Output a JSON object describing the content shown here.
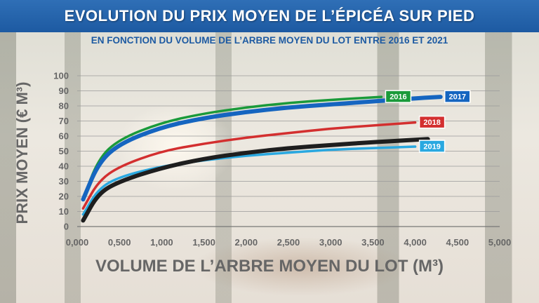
{
  "header": {
    "title": "EVOLUTION DU PRIX MOYEN DE L’ÉPICÉA SUR PIED",
    "subtitle": "EN FONCTION DU VOLUME DE L’ARBRE MOYEN DU LOT ENTRE 2016 ET 2021"
  },
  "chart_data": {
    "type": "line",
    "title": "EVOLUTION DU PRIX MOYEN DE L’ÉPICÉA SUR PIED",
    "subtitle": "EN FONCTION DU VOLUME DE L’ARBRE MOYEN DU LOT ENTRE 2016 ET 2021",
    "xlabel": "VOLUME DE L’ARBRE MOYEN DU LOT (M³)",
    "ylabel": "PRIX MOYEN (€ M³)",
    "xlim": [
      0,
      5
    ],
    "ylim": [
      0,
      100
    ],
    "x_ticks": [
      "0,000",
      "0,500",
      "1,000",
      "1,500",
      "2,000",
      "2,500",
      "3,000",
      "3,500",
      "4,000",
      "4,500",
      "5,000"
    ],
    "y_ticks": [
      "0",
      "10",
      "20",
      "30",
      "40",
      "50",
      "60",
      "70",
      "80",
      "90",
      "100"
    ],
    "grid": true,
    "legend": "labels at line ends",
    "series": [
      {
        "name": "2016",
        "color": "#1a9a3a",
        "x": [
          0.07,
          0.25,
          0.5,
          1.0,
          1.5,
          2.0,
          2.5,
          3.0,
          3.6
        ],
        "y": [
          18,
          45,
          58,
          69,
          75,
          79,
          82,
          84,
          86
        ]
      },
      {
        "name": "2017",
        "color": "#1565c0",
        "x": [
          0.07,
          0.25,
          0.5,
          1.0,
          1.5,
          2.0,
          2.5,
          3.0,
          3.5,
          4.0,
          4.3
        ],
        "y": [
          18,
          42,
          55,
          66,
          72,
          76,
          79,
          81,
          83,
          85,
          86
        ]
      },
      {
        "name": "2018",
        "color": "#d32f2f",
        "x": [
          0.07,
          0.25,
          0.5,
          1.0,
          1.5,
          2.0,
          2.5,
          3.0,
          3.5,
          4.0
        ],
        "y": [
          12,
          30,
          40,
          50,
          55,
          59,
          62,
          65,
          67,
          69
        ]
      },
      {
        "name": "2019",
        "color": "#29a8e0",
        "x": [
          0.07,
          0.25,
          0.5,
          1.0,
          1.5,
          2.0,
          2.5,
          3.0,
          3.5,
          4.0
        ],
        "y": [
          8,
          25,
          33,
          40,
          44,
          47,
          49,
          51,
          52,
          53
        ]
      },
      {
        "name": "",
        "color": "#1e1e1e",
        "x": [
          0.07,
          0.25,
          0.5,
          1.0,
          1.5,
          2.0,
          2.5,
          3.0,
          3.5,
          4.15
        ],
        "y": [
          4,
          22,
          30,
          39,
          45,
          49,
          52,
          54,
          56,
          58
        ]
      }
    ]
  }
}
